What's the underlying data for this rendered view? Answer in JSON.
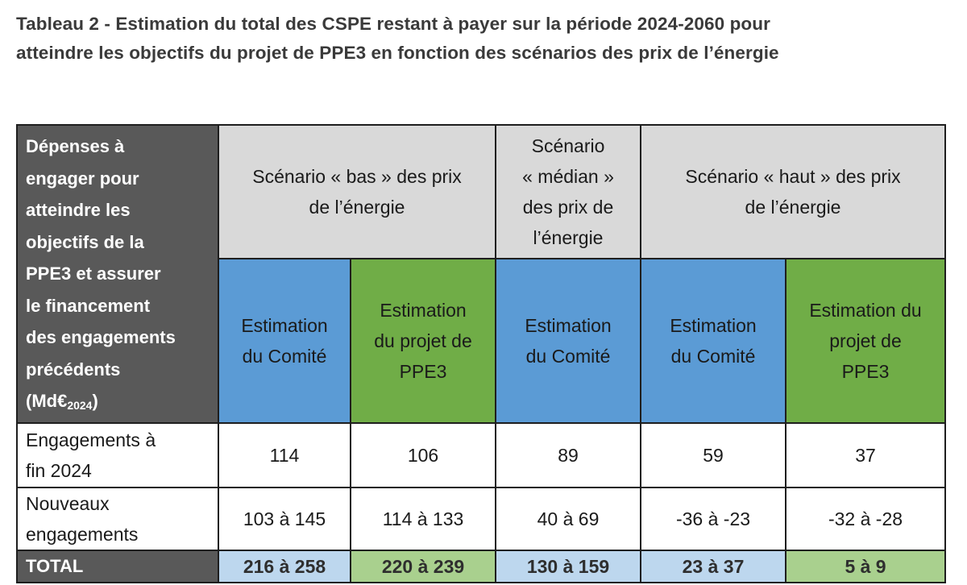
{
  "title_line1": "Tableau 2 - Estimation du total des CSPE restant à payer sur la période 2024-2060 pour",
  "title_line2": "atteindre les objectifs du projet de PPE3 en fonction des scénarios des prix de l’énergie",
  "corner_lines": [
    "Dépenses à",
    "engager pour",
    "atteindre les",
    "objectifs de la",
    "PPE3 et assurer",
    "le financement",
    "des engagements",
    "précédents"
  ],
  "corner_unit": "(Md€",
  "corner_unit_sub": "2024",
  "corner_unit_end": ")",
  "scenarios": {
    "bas": [
      "Scénario « bas » des prix",
      "de l’énergie"
    ],
    "median": [
      "Scénario",
      "« médian »",
      "des prix de",
      "l’énergie"
    ],
    "haut": [
      "Scénario « haut » des prix",
      "de l’énergie"
    ]
  },
  "subheads": [
    [
      "Estimation",
      "du Comité"
    ],
    [
      "Estimation",
      "du projet de",
      "PPE3"
    ],
    [
      "Estimation",
      "du Comité"
    ],
    [
      "Estimation",
      "du Comité"
    ],
    [
      "Estimation du",
      "projet de",
      "PPE3"
    ]
  ],
  "rows": [
    {
      "label": [
        "Engagements à",
        "fin 2024"
      ],
      "values": [
        "114",
        "106",
        "89",
        "59",
        "37"
      ]
    },
    {
      "label": [
        "Nouveaux",
        "engagements"
      ],
      "values": [
        "103 à 145",
        "114 à 133",
        "40 à 69",
        "-36 à -23",
        "-32 à -28"
      ]
    }
  ],
  "total": {
    "label": "TOTAL",
    "values": [
      "216 à 258",
      "220 à 239",
      "130 à 159",
      "23 à 37",
      "5 à 9"
    ]
  },
  "colors": {
    "header_dark": "#595959",
    "scenario_grey": "#d9d9d9",
    "blue": "#5b9bd5",
    "green": "#70ad47",
    "total_blue": "#bdd7ee",
    "total_green": "#a9d08e"
  }
}
